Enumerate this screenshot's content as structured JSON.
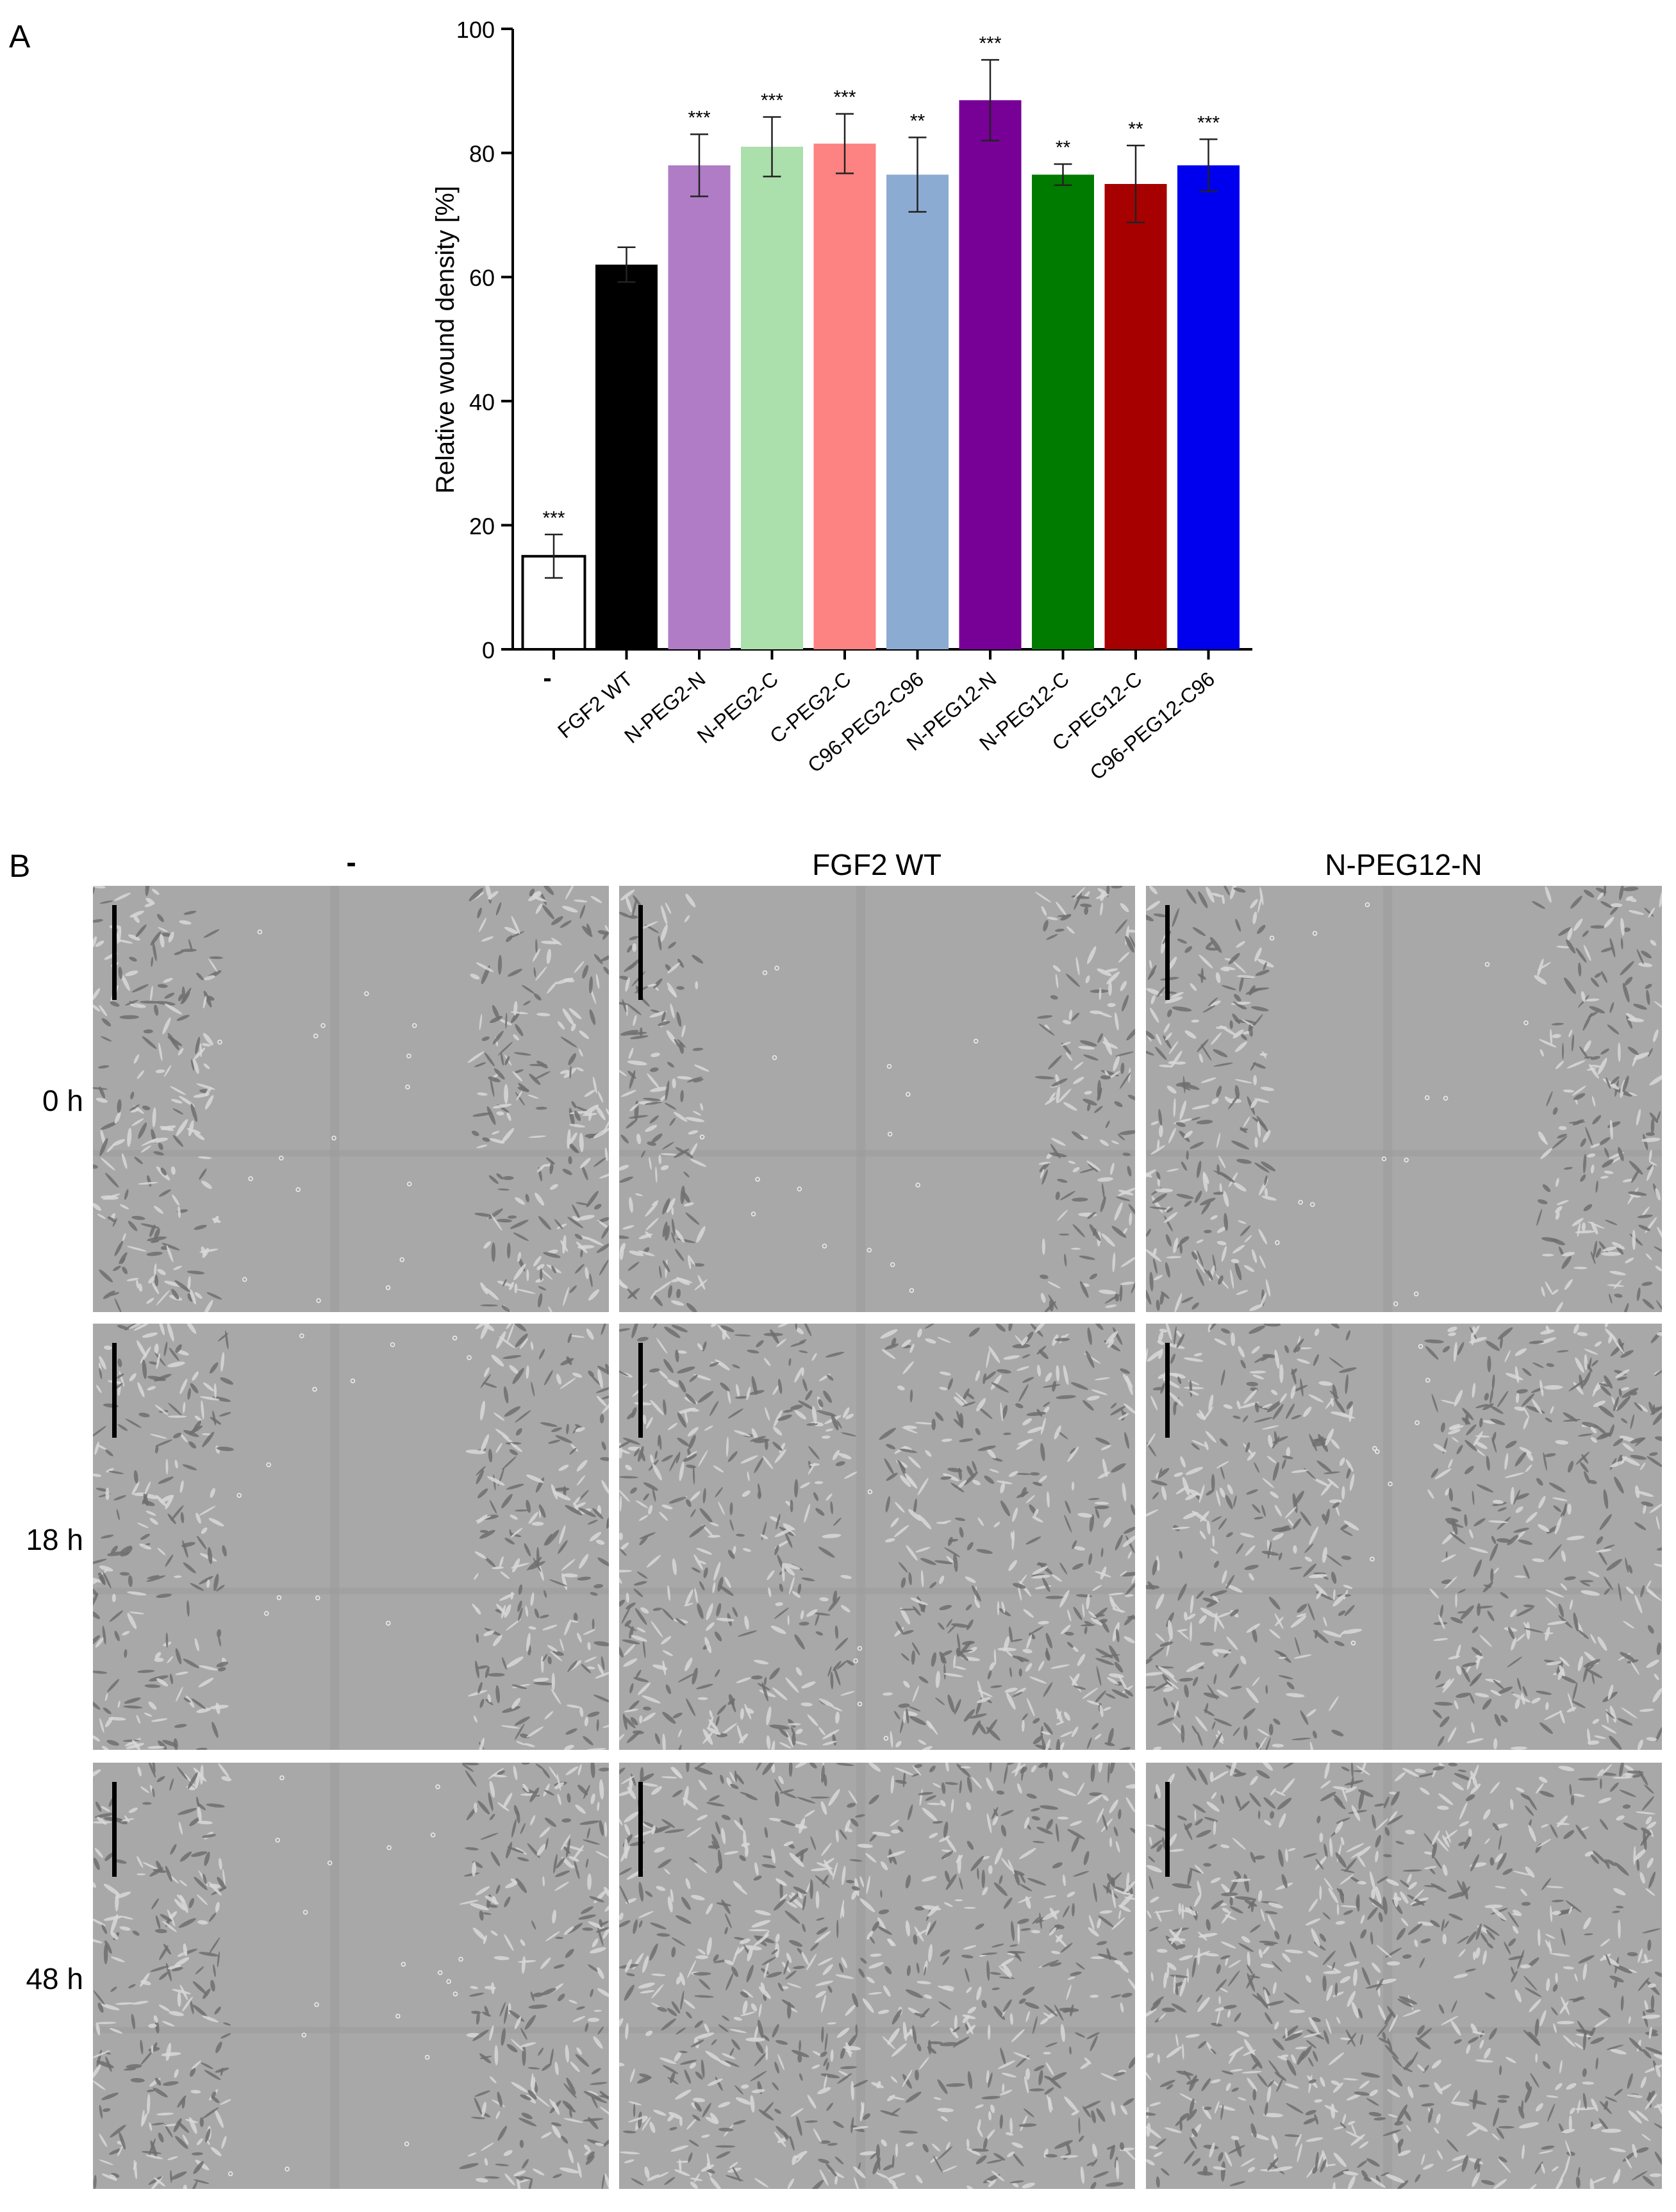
{
  "panels": {
    "a_label": "A",
    "b_label": "B"
  },
  "chart_data": {
    "type": "bar",
    "ylabel": "Relative wound density [%]",
    "xlabel": "",
    "ylim": [
      0,
      100
    ],
    "yticks": [
      0,
      20,
      40,
      60,
      80,
      100
    ],
    "categories": [
      "-",
      "FGF2 WT",
      "N-PEG2-N",
      "N-PEG2-C",
      "C-PEG2-C",
      "C96-PEG2-C96",
      "N-PEG12-N",
      "N-PEG12-C",
      "C-PEG12-C",
      "C96-PEG12-C96"
    ],
    "values": [
      15,
      62,
      78,
      81,
      81.5,
      76.5,
      88.5,
      76.5,
      75,
      78
    ],
    "errors": [
      3.5,
      2.8,
      5,
      4.8,
      4.8,
      6,
      6.5,
      1.7,
      6.2,
      4.2
    ],
    "significance": [
      "***",
      "",
      "***",
      "***",
      "***",
      "**",
      "***",
      "**",
      "**",
      "***"
    ],
    "colors": [
      "#ffffff",
      "#000000",
      "#b07cc6",
      "#abdfab",
      "#fd8282",
      "#8cabd2",
      "#770097",
      "#007b00",
      "#a70000",
      "#0000ef"
    ],
    "grid": false,
    "legend": "none"
  },
  "micrographs": {
    "columns": [
      "-",
      "FGF2 WT",
      "N-PEG12-N"
    ],
    "rows": [
      "0 h",
      "18 h",
      "48 h"
    ]
  }
}
